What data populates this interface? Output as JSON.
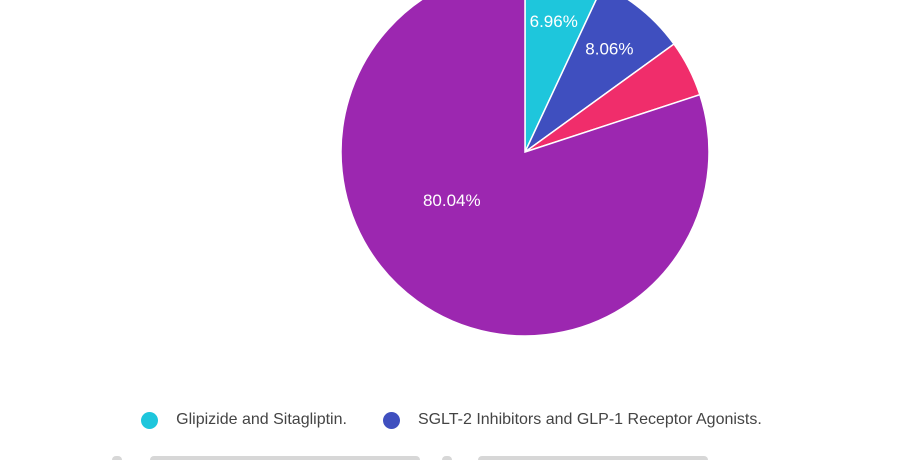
{
  "chart_data": {
    "type": "pie",
    "title": "",
    "slices": [
      {
        "name": "Glipizide and Sitagliptin.",
        "value": 6.96,
        "label": "6.96%",
        "color": "#1ec6dc"
      },
      {
        "name": "SGLT-2 Inhibitors and GLP-1 Receptor Agonists.",
        "value": 8.06,
        "label": "8.06%",
        "color": "#3f4fbf"
      },
      {
        "name": "",
        "value": 4.94,
        "label": "",
        "color": "#f02d6b"
      },
      {
        "name": "",
        "value": 80.04,
        "label": "80.04%",
        "color": "#9c27b0"
      }
    ],
    "legend_position": "bottom",
    "start_angle_deg": 0,
    "direction": "clockwise"
  },
  "legend": {
    "items": [
      {
        "label": "Glipizide and Sitagliptin.",
        "color": "#1ec6dc"
      },
      {
        "label": "SGLT-2 Inhibitors and GLP-1 Receptor Agonists.",
        "color": "#3f4fbf"
      }
    ]
  }
}
